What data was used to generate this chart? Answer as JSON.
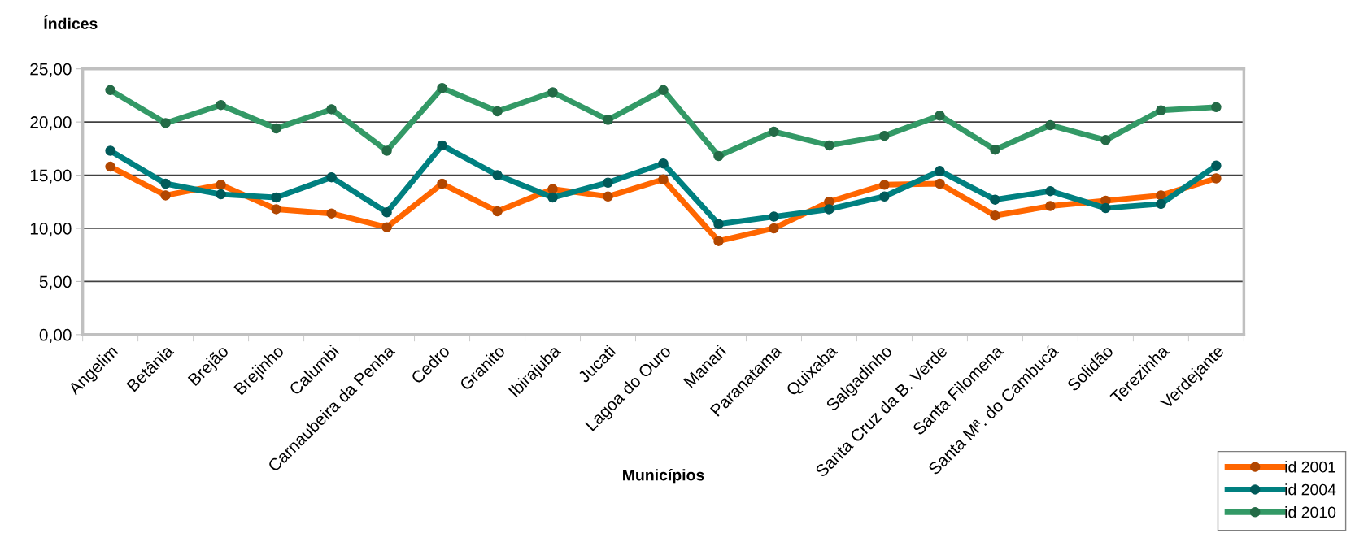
{
  "chart_data": {
    "type": "line",
    "xlabel": "Municípios",
    "ylabel": "Índices",
    "categories": [
      "Angelim",
      "Betânia",
      "Brejão",
      "Brejinho",
      "Calumbi",
      "Carnaubeira da Penha",
      "Cedro",
      "Granito",
      "Ibirajuba",
      "Jucati",
      "Lagoa do Ouro",
      "Manari",
      "Paranatama",
      "Quixaba",
      "Salgadinho",
      "Santa Cruz da B. Verde",
      "Santa Filomena",
      "Santa Mª. do Cambucá",
      "Solidão",
      "Terezinha",
      "Verdejante"
    ],
    "series": [
      {
        "name": "id 2001",
        "color": "#ff6600",
        "values": [
          15.8,
          13.1,
          14.1,
          11.8,
          11.4,
          10.1,
          14.2,
          11.6,
          13.7,
          13.0,
          14.6,
          8.8,
          10.0,
          12.5,
          14.1,
          14.2,
          11.2,
          12.1,
          12.6,
          13.1,
          14.7
        ]
      },
      {
        "name": "id 2004",
        "color": "#008080",
        "values": [
          17.3,
          14.2,
          13.2,
          12.9,
          14.8,
          11.5,
          17.8,
          15.0,
          12.9,
          14.3,
          16.1,
          10.4,
          11.1,
          11.8,
          13.0,
          15.4,
          12.7,
          13.5,
          11.9,
          12.3,
          15.9
        ]
      },
      {
        "name": "id 2010",
        "color": "#339966",
        "values": [
          23.0,
          19.9,
          21.6,
          19.4,
          21.2,
          17.3,
          23.2,
          21.0,
          22.8,
          20.2,
          23.0,
          16.8,
          19.1,
          17.8,
          18.7,
          20.6,
          17.4,
          19.7,
          18.3,
          21.1,
          21.4
        ]
      }
    ],
    "ylim": [
      0,
      25
    ],
    "yticks": [
      {
        "value": 0,
        "label": "0,00"
      },
      {
        "value": 5,
        "label": "5,00"
      },
      {
        "value": 10,
        "label": "10,00"
      },
      {
        "value": 15,
        "label": "15,00"
      },
      {
        "value": 20,
        "label": "20,00"
      },
      {
        "value": 25,
        "label": "25,00"
      }
    ],
    "grid": "y",
    "legend": "bottom right",
    "marker": "circle",
    "line_style": "solid"
  }
}
